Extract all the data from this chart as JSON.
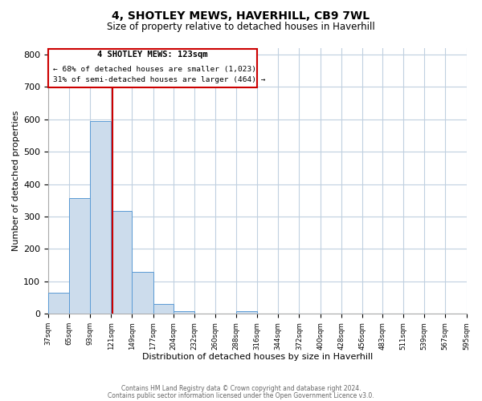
{
  "title": "4, SHOTLEY MEWS, HAVERHILL, CB9 7WL",
  "subtitle": "Size of property relative to detached houses in Haverhill",
  "xlabel": "Distribution of detached houses by size in Haverhill",
  "ylabel": "Number of detached properties",
  "bin_edges": [
    37,
    65,
    93,
    121,
    149,
    177,
    204,
    232,
    260,
    288,
    316,
    344,
    372,
    400,
    428,
    456,
    483,
    511,
    539,
    567,
    595
  ],
  "bar_heights": [
    65,
    357,
    595,
    318,
    130,
    30,
    8,
    0,
    0,
    8,
    0,
    0,
    0,
    0,
    0,
    0,
    0,
    0,
    0,
    0
  ],
  "bar_color": "#ccdcec",
  "bar_edge_color": "#5b9bd5",
  "property_line_x": 123,
  "property_line_color": "#cc0000",
  "annotation_box_color": "#cc0000",
  "annotation_title": "4 SHOTLEY MEWS: 123sqm",
  "annotation_line1": "← 68% of detached houses are smaller (1,023)",
  "annotation_line2": "31% of semi-detached houses are larger (464) →",
  "ylim": [
    0,
    820
  ],
  "yticks": [
    0,
    100,
    200,
    300,
    400,
    500,
    600,
    700,
    800
  ],
  "tick_labels": [
    "37sqm",
    "65sqm",
    "93sqm",
    "121sqm",
    "149sqm",
    "177sqm",
    "204sqm",
    "232sqm",
    "260sqm",
    "288sqm",
    "316sqm",
    "344sqm",
    "372sqm",
    "400sqm",
    "428sqm",
    "456sqm",
    "483sqm",
    "511sqm",
    "539sqm",
    "567sqm",
    "595sqm"
  ],
  "footer_line1": "Contains HM Land Registry data © Crown copyright and database right 2024.",
  "footer_line2": "Contains public sector information licensed under the Open Government Licence v3.0.",
  "bg_color": "#ffffff",
  "grid_color": "#c0d0e0"
}
